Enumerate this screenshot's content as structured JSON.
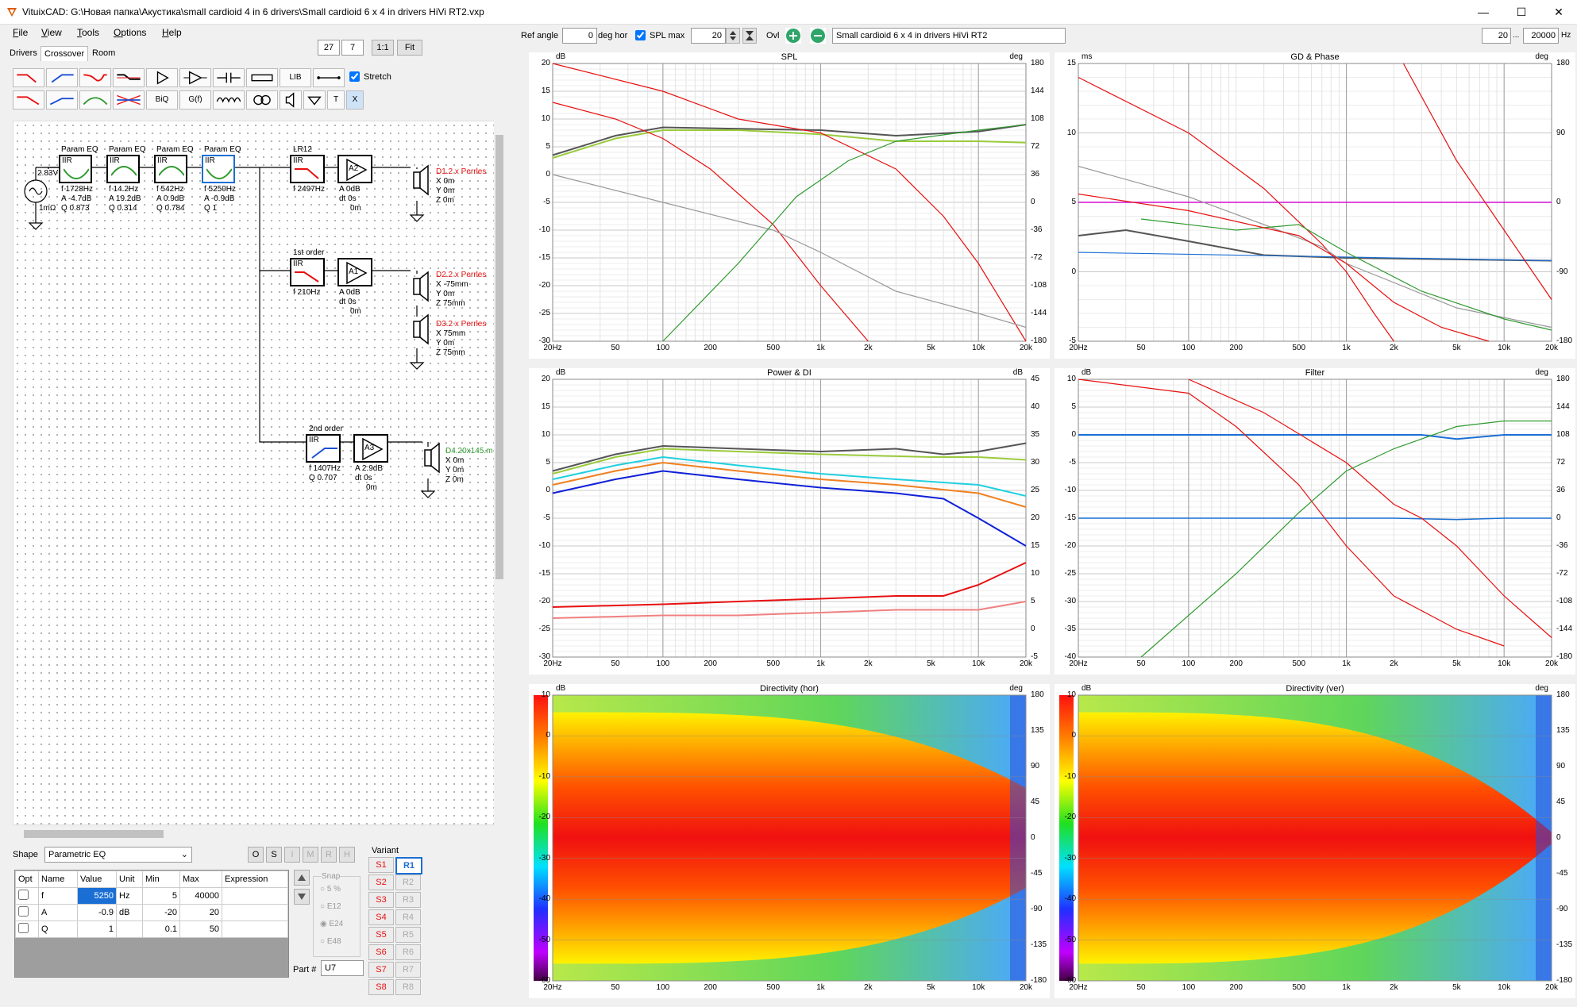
{
  "window": {
    "title": "VituixCAD: G:\\Новая папка\\Акустика\\small cardioid 4 in 6 drivers\\Small cardioid 6 x 4 in drivers HiVi RT2.vxp",
    "minimize": "—",
    "maximize": "☐",
    "close": "✕"
  },
  "menu": [
    "File",
    "View",
    "Tools",
    "Options",
    "Help"
  ],
  "tabs": [
    "Drivers",
    "Crossover",
    "Room"
  ],
  "zoom": {
    "a": "27",
    "b": "7",
    "ratio": "1:1",
    "fit": "Fit"
  },
  "toolbar": {
    "stretch_label": "Stretch",
    "lib": "LIB",
    "biq": "BiQ",
    "gf": "G(f)",
    "t": "T",
    "x": "X"
  },
  "schematic": {
    "source": {
      "voltage": "2.83V",
      "impedance": "1mΩ"
    },
    "eq_blocks": [
      {
        "title": "Param EQ",
        "type": "IIR",
        "f": "f 1728Hz",
        "a": "A -4.7dB",
        "q": "Q 0.873"
      },
      {
        "title": "Param EQ",
        "type": "IIR",
        "f": "f 14.2Hz",
        "a": "A 19.2dB",
        "q": "Q 0.314"
      },
      {
        "title": "Param EQ",
        "type": "IIR",
        "f": "f 542Hz",
        "a": "A 0.9dB",
        "q": "Q 0.784"
      },
      {
        "title": "Param EQ",
        "type": "IIR",
        "f": "f 5250Hz",
        "a": "A -0.9dB",
        "q": "Q 1"
      }
    ],
    "branch1": {
      "title": "LR12",
      "type": "IIR",
      "f": "f 2497Hz",
      "amp": "A2",
      "a": "A 0dB",
      "dt": "dt 0s",
      "m": "0m",
      "driver": "D1.2 x Perrles",
      "x": "X 0m",
      "y": "Y 0m",
      "z": "Z 0m"
    },
    "branch2": {
      "title": "1st order",
      "type": "IIR",
      "f": "f 210Hz",
      "amp": "A1",
      "a": "A 0dB",
      "dt": "dt 0s",
      "m": "0m",
      "driver_a": "D2.2 x Perrles",
      "xa": "X -75mm",
      "ya": "Y 0m",
      "za": "Z 75mm",
      "driver_b": "D3.2 x Perrles",
      "xb": "X 75mm",
      "yb": "Y 0m",
      "zb": "Z 75mm"
    },
    "branch3": {
      "title": "2nd order",
      "type": "IIR",
      "f": "f 1407Hz",
      "q": "Q 0.707",
      "amp": "A3",
      "a": "A 2.9dB",
      "dt": "dt 0s",
      "m": "0m",
      "driver": "D4.20x145.m",
      "x": "X 0m",
      "y": "Y 0m",
      "z": "Z 0m"
    }
  },
  "props": {
    "shape_label": "Shape",
    "shape_value": "Parametric EQ",
    "mode_buttons": [
      "O",
      "S",
      "I",
      "M",
      "R",
      "H"
    ],
    "headers": [
      "Opt",
      "Name",
      "Value",
      "Unit",
      "Min",
      "Max",
      "Expression"
    ],
    "rows": [
      {
        "name": "f",
        "value": "5250",
        "unit": "Hz",
        "min": "5",
        "max": "40000",
        "expr": ""
      },
      {
        "name": "A",
        "value": "-0.9",
        "unit": "dB",
        "min": "-20",
        "max": "20",
        "expr": ""
      },
      {
        "name": "Q",
        "value": "1",
        "unit": "",
        "min": "0.1",
        "max": "50",
        "expr": ""
      }
    ],
    "snap_label": "Snap",
    "snap_options": [
      "5 %",
      "E12",
      "E24",
      "E48"
    ],
    "part_label": "Part #",
    "part_value": "U7",
    "variant_label": "Variant",
    "variants_s": [
      "S1",
      "S2",
      "S3",
      "S4",
      "S5",
      "S6",
      "S7",
      "S8"
    ],
    "variants_r": [
      "R1",
      "R2",
      "R3",
      "R4",
      "R5",
      "R6",
      "R7",
      "R8"
    ]
  },
  "topbar": {
    "ref_angle_label": "Ref angle",
    "ref_angle_value": "0",
    "deg_hor": "deg hor",
    "spl_max_label": "SPL max",
    "spl_max_value": "20",
    "ovl_label": "Ovl",
    "project_name": "Small cardioid 6 x 4 in drivers HiVi RT2",
    "f_min": "20",
    "ellipsis": "...",
    "f_max": "20000",
    "hz": "Hz"
  },
  "graphs": {
    "x_ticks": [
      "20Hz",
      "50",
      "100",
      "200",
      "500",
      "1k",
      "2k",
      "5k",
      "10k",
      "20k"
    ],
    "spl": {
      "title": "SPL",
      "left_unit": "dB",
      "right_unit": "deg",
      "left_ticks": [
        "20",
        "15",
        "10",
        "5",
        "0",
        "-5",
        "-10",
        "-15",
        "-20",
        "-25",
        "-30"
      ],
      "right_ticks": [
        "180",
        "144",
        "108",
        "72",
        "36",
        "0",
        "-36",
        "-72",
        "-108",
        "-144",
        "-180"
      ]
    },
    "gd": {
      "title": "GD & Phase",
      "left_unit": "ms",
      "right_unit": "deg",
      "left_ticks": [
        "15",
        "10",
        "5",
        "0",
        "-5"
      ],
      "right_ticks": [
        "180",
        "90",
        "0",
        "-90",
        "-180"
      ]
    },
    "power": {
      "title": "Power & DI",
      "left_unit": "dB",
      "right_unit": "dB",
      "left_ticks": [
        "20",
        "15",
        "10",
        "5",
        "0",
        "-5",
        "-10",
        "-15",
        "-20",
        "-25",
        "-30"
      ],
      "right_ticks": [
        "45",
        "40",
        "35",
        "30",
        "25",
        "20",
        "15",
        "10",
        "5",
        "0",
        "-5"
      ]
    },
    "filter": {
      "title": "Filter",
      "left_unit": "dB",
      "right_unit": "deg",
      "left_ticks": [
        "10",
        "5",
        "0",
        "-5",
        "-10",
        "-15",
        "-20",
        "-25",
        "-30",
        "-35",
        "-40"
      ],
      "right_ticks": [
        "180",
        "144",
        "108",
        "72",
        "36",
        "0",
        "-36",
        "-72",
        "-108",
        "-144",
        "-180"
      ]
    },
    "dir_hor": {
      "title": "Directivity (hor)",
      "left_unit": "dB",
      "right_unit": "deg",
      "left_ticks": [
        "10",
        "0",
        "-10",
        "-20",
        "-30",
        "-40",
        "-50",
        "-60"
      ],
      "right_ticks": [
        "180",
        "135",
        "90",
        "45",
        "0",
        "-45",
        "-90",
        "-135",
        "-180"
      ]
    },
    "dir_ver": {
      "title": "Directivity (ver)",
      "left_unit": "dB",
      "right_unit": "deg",
      "left_ticks": [
        "10",
        "0",
        "-10",
        "-20",
        "-30",
        "-40",
        "-50",
        "-60"
      ],
      "right_ticks": [
        "180",
        "135",
        "90",
        "45",
        "0",
        "-45",
        "-90",
        "-135",
        "-180"
      ]
    }
  },
  "colors": {
    "accent": "#1b6fd4",
    "red": "#e81010",
    "green": "#2f9a2f",
    "gray": "#7a7a7a"
  }
}
